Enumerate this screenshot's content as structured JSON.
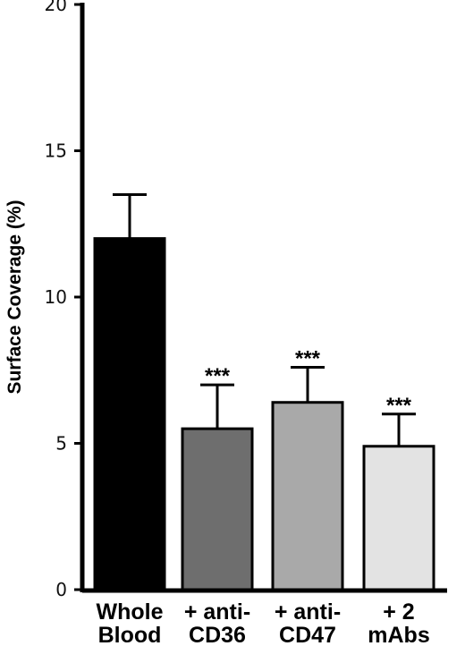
{
  "chart_data": {
    "type": "bar",
    "title": "",
    "xlabel": "",
    "ylabel": "Surface Coverage (%)",
    "ylim": [
      0,
      20
    ],
    "yticks": [
      0,
      5,
      10,
      15,
      20
    ],
    "grid": false,
    "categories": [
      [
        "Whole",
        "Blood"
      ],
      [
        "+ anti-",
        "CD36"
      ],
      [
        "+ anti-",
        "CD47"
      ],
      [
        "+ 2",
        "mAbs"
      ]
    ],
    "values": [
      12.0,
      5.5,
      6.4,
      4.9
    ],
    "errors": [
      1.5,
      1.5,
      1.2,
      1.1
    ],
    "significance": [
      "",
      "***",
      "***",
      "***"
    ],
    "colors": [
      "#000000",
      "#6e6e6e",
      "#a9a9a9",
      "#e3e3e3"
    ]
  }
}
